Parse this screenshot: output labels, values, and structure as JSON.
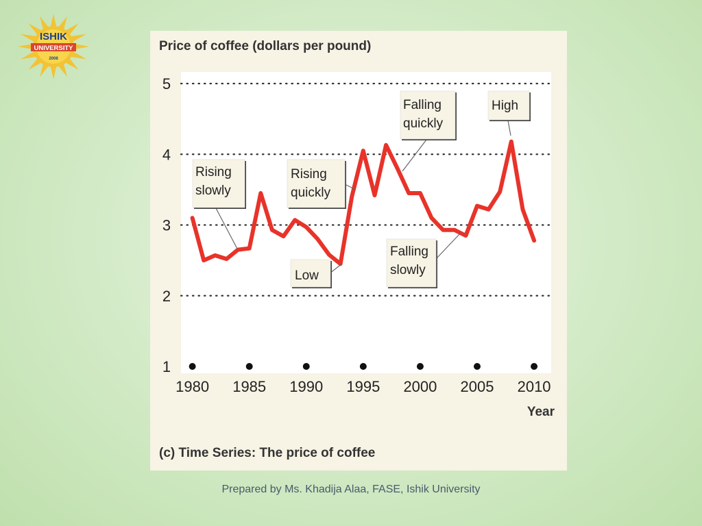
{
  "logo": {
    "line1": "ISHIK",
    "line2": "UNIVERSITY",
    "year": "2008"
  },
  "chart_data": {
    "type": "line",
    "title": "Price of coffee (dollars per pound)",
    "caption": "(c)  Time Series: The price of coffee",
    "xlabel": "Year",
    "ylabel": "",
    "xlim": [
      1979,
      2011.5
    ],
    "ylim": [
      1,
      5
    ],
    "x_ticks": [
      1980,
      1985,
      1990,
      1995,
      2000,
      2005,
      2010
    ],
    "y_ticks": [
      1,
      2,
      3,
      4,
      5
    ],
    "grid_y": [
      2,
      3,
      4,
      5
    ],
    "series_color": "#e8332a",
    "series": [
      {
        "x": [
          1980,
          1981,
          1982,
          1983,
          1984,
          1985,
          1986,
          1987,
          1988,
          1989,
          1990,
          1991,
          1992,
          1993,
          1994,
          1995,
          1996,
          1997,
          1998,
          1999,
          2000,
          2001,
          2002,
          2003,
          2004,
          2005,
          2006,
          2007,
          2008,
          2009,
          2010
        ],
        "values": [
          3.1,
          2.5,
          2.57,
          2.52,
          2.65,
          2.67,
          3.45,
          2.93,
          2.84,
          3.07,
          2.97,
          2.8,
          2.58,
          2.45,
          3.4,
          4.05,
          3.42,
          4.13,
          3.8,
          3.45,
          3.45,
          3.1,
          2.93,
          2.93,
          2.85,
          3.27,
          3.22,
          3.47,
          4.18,
          3.22,
          2.78
        ]
      }
    ],
    "annotations": [
      {
        "line1": "Rising",
        "line2": "slowly"
      },
      {
        "line1": "Rising",
        "line2": "quickly"
      },
      {
        "line1": "Low",
        "line2": ""
      },
      {
        "line1": "Falling",
        "line2": "quickly"
      },
      {
        "line1": "High",
        "line2": ""
      },
      {
        "line1": "Falling",
        "line2": "slowly"
      }
    ]
  },
  "footer": "Prepared by Ms. Khadija Alaa, FASE, Ishik University"
}
